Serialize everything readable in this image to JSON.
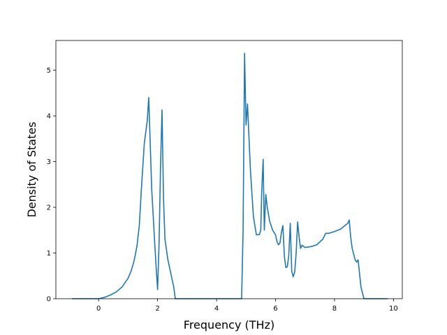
{
  "chart_data": {
    "type": "line",
    "title": "",
    "xlabel": "Frequency (THz)",
    "ylabel": "Density of States",
    "xlim": [
      -1.45,
      10.3
    ],
    "ylim": [
      0,
      5.65
    ],
    "x_ticks": [
      0,
      2,
      4,
      6,
      8,
      10
    ],
    "y_ticks": [
      0,
      1,
      2,
      3,
      4,
      5
    ],
    "grid": false,
    "legend": "none",
    "series": [
      {
        "color": "#1f77b4",
        "x": [
          -0.9,
          -0.5,
          0.0,
          0.2,
          0.4,
          0.6,
          0.8,
          1.0,
          1.1,
          1.2,
          1.3,
          1.38,
          1.45,
          1.55,
          1.65,
          1.7,
          1.8,
          1.9,
          1.95,
          2.0,
          2.05,
          2.1,
          2.15,
          2.2,
          2.25,
          2.35,
          2.45,
          2.55,
          2.6,
          2.7,
          3.5,
          4.5,
          4.85,
          4.9,
          4.95,
          5.0,
          5.05,
          5.15,
          5.25,
          5.35,
          5.45,
          5.5,
          5.53,
          5.58,
          5.62,
          5.67,
          5.72,
          5.8,
          5.9,
          6.0,
          6.05,
          6.1,
          6.15,
          6.2,
          6.25,
          6.3,
          6.35,
          6.4,
          6.45,
          6.5,
          6.55,
          6.6,
          6.65,
          6.7,
          6.75,
          6.8,
          6.85,
          6.9,
          7.0,
          7.2,
          7.4,
          7.6,
          7.7,
          7.8,
          8.0,
          8.2,
          8.35,
          8.45,
          8.5,
          8.55,
          8.6,
          8.7,
          8.75,
          8.8,
          8.85,
          8.9,
          9.0,
          9.8
        ],
        "y": [
          0,
          0,
          0,
          0.03,
          0.08,
          0.15,
          0.26,
          0.45,
          0.6,
          0.82,
          1.15,
          1.6,
          2.4,
          3.4,
          3.9,
          4.4,
          2.4,
          1.25,
          0.7,
          0.2,
          1.2,
          2.9,
          4.13,
          2.2,
          1.3,
          0.85,
          0.55,
          0.25,
          0,
          0,
          0,
          0,
          0,
          1.5,
          5.37,
          3.8,
          4.26,
          2.8,
          1.8,
          1.4,
          1.4,
          1.5,
          2.3,
          3.05,
          1.5,
          2.28,
          2.0,
          1.7,
          1.5,
          1.4,
          1.25,
          1.18,
          1.22,
          1.45,
          1.6,
          0.93,
          0.68,
          0.7,
          0.95,
          1.65,
          0.6,
          0.48,
          0.58,
          1.0,
          1.68,
          1.35,
          1.1,
          1.17,
          1.12,
          1.14,
          1.18,
          1.3,
          1.43,
          1.43,
          1.47,
          1.52,
          1.6,
          1.65,
          1.72,
          1.35,
          1.1,
          0.85,
          0.8,
          0.85,
          0.55,
          0.25,
          0,
          0
        ]
      }
    ]
  }
}
